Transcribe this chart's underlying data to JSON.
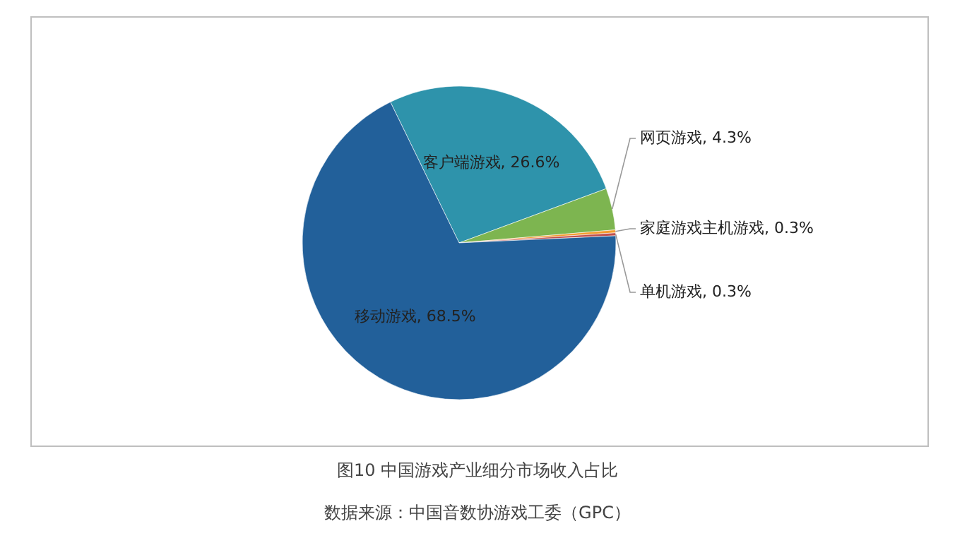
{
  "chart_data": {
    "type": "pie",
    "title": "图10 中国游戏产业细分市场收入占比",
    "categories": [
      "客户端游戏",
      "网页游戏",
      "家庭游戏主机游戏",
      "单机游戏",
      "移动游戏"
    ],
    "values": [
      26.6,
      4.3,
      0.3,
      0.3,
      68.5
    ],
    "value_labels": [
      "26.6%",
      "4.3%",
      "0.3%",
      "0.3%",
      "68.5%"
    ],
    "colors": [
      "#2e93ab",
      "#7db550",
      "#f39c2e",
      "#c0504d",
      "#22609a"
    ],
    "annotations": [
      "数据来源：中国音数协游戏工委（GPC）"
    ]
  }
}
